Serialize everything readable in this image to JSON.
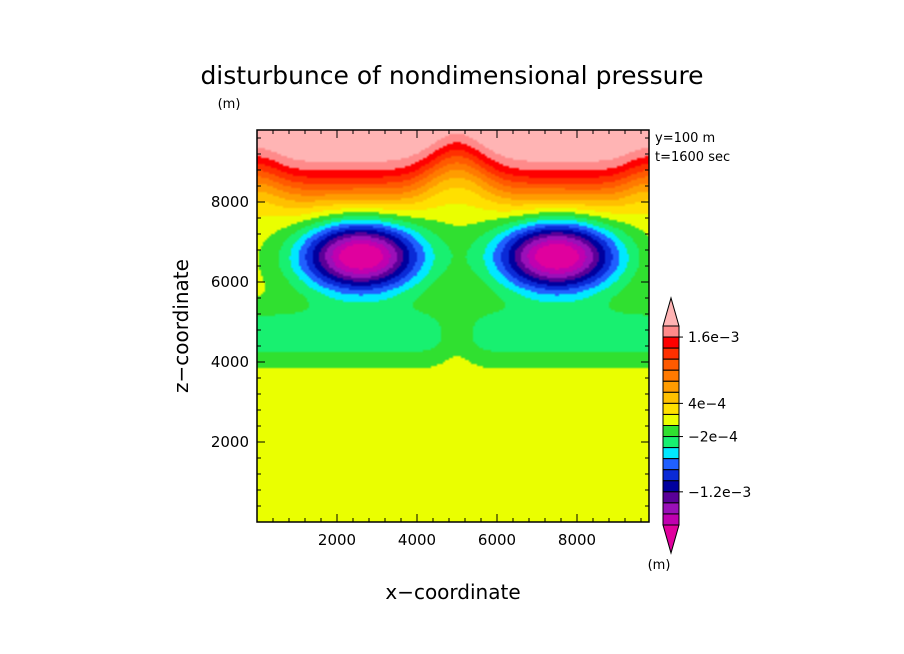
{
  "chart_data": {
    "type": "heatmap",
    "title": "disturbunce of nondimensional pressure",
    "xlabel": "x−coordinate",
    "ylabel": "z−coordinate",
    "y_unit": "(m)",
    "colorbar_unit": "(m)",
    "xlim": [
      0,
      9800
    ],
    "ylim": [
      0,
      9800
    ],
    "x_ticks": [
      2000,
      4000,
      6000,
      8000
    ],
    "x_tick_labels": [
      "2000",
      "4000",
      "6000",
      "8000"
    ],
    "y_ticks": [
      2000,
      4000,
      6000,
      8000
    ],
    "y_tick_labels": [
      "2000",
      "4000",
      "6000",
      "8000"
    ],
    "minor_tick_step": 400,
    "annotations": [
      "y=100 m",
      "t=1600 sec"
    ],
    "colorbar": {
      "levels": [
        -0.002,
        -0.0018,
        -0.0016,
        -0.0014,
        -0.0012,
        -0.001,
        -0.0008,
        -0.0006,
        -0.0004,
        -0.0002,
        0,
        0.0002,
        0.0004,
        0.0006,
        0.0008,
        0.001,
        0.0012,
        0.0014,
        0.0016,
        0.0018
      ],
      "colors": [
        "#e0009e",
        "#c000b0",
        "#9a10b8",
        "#5a0098",
        "#00009e",
        "#0a2ad6",
        "#2060ff",
        "#00e8ff",
        "#18f070",
        "#30e030",
        "#eaff00",
        "#ffe000",
        "#ffc000",
        "#ff9c00",
        "#ff7a00",
        "#ff5a00",
        "#ff3000",
        "#ff0000",
        "#ff8a8a",
        "#ffb4b4"
      ],
      "tick_labels": [
        {
          "value": 0.0016,
          "label": "1.6e−3"
        },
        {
          "value": 0.0004,
          "label": "4e−4"
        },
        {
          "value": -0.0002,
          "label": "−2e−4"
        },
        {
          "value": -0.0012,
          "label": "−1.2e−3"
        }
      ]
    },
    "field": {
      "background_value": 0.0001,
      "vortices": [
        {
          "x": 2600,
          "z": 6650,
          "amplitude": -0.0022,
          "sx": 1050,
          "sz": 620
        },
        {
          "x": 7500,
          "z": 6650,
          "amplitude": -0.0022,
          "sx": 1050,
          "sz": 620
        }
      ],
      "top_ridges": [
        {
          "x": 2500,
          "level": 9000
        },
        {
          "x": 7500,
          "level": 9000
        }
      ],
      "center_bump": {
        "x": 5000,
        "z": 4300
      }
    }
  }
}
